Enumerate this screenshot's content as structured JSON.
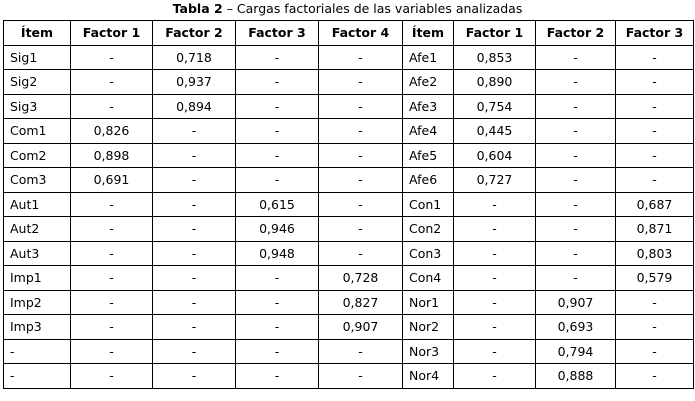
{
  "caption": {
    "label": "Tabla 2",
    "text": "– Cargas factoriales de las variables analizadas"
  },
  "table": {
    "header": [
      "Ítem",
      "Factor 1",
      "Factor 2",
      "Factor 3",
      "Factor 4",
      "Ítem",
      "Factor 1",
      "Factor 2",
      "Factor 3"
    ],
    "rows": [
      [
        "Sig1",
        "-",
        "0,718",
        "-",
        "-",
        "Afe1",
        "0,853",
        "-",
        "-"
      ],
      [
        "Sig2",
        "-",
        "0,937",
        "-",
        "-",
        "Afe2",
        "0,890",
        "-",
        "-"
      ],
      [
        "Sig3",
        "-",
        "0,894",
        "-",
        "-",
        "Afe3",
        "0,754",
        "-",
        "-"
      ],
      [
        "Com1",
        "0,826",
        "-",
        "-",
        "-",
        "Afe4",
        "0,445",
        "-",
        "-"
      ],
      [
        "Com2",
        "0,898",
        "-",
        "-",
        "-",
        "Afe5",
        "0,604",
        "-",
        "-"
      ],
      [
        "Com3",
        "0,691",
        "-",
        "-",
        "-",
        "Afe6",
        "0,727",
        "-",
        "-"
      ],
      [
        "Aut1",
        "-",
        "-",
        "0,615",
        "-",
        "Con1",
        "-",
        "-",
        "0,687"
      ],
      [
        "Aut2",
        "-",
        "-",
        "0,946",
        "-",
        "Con2",
        "-",
        "-",
        "0,871"
      ],
      [
        "Aut3",
        "-",
        "-",
        "0,948",
        "-",
        "Con3",
        "-",
        "-",
        "0,803"
      ],
      [
        "Imp1",
        "-",
        "-",
        "-",
        "0,728",
        "Con4",
        "-",
        "-",
        "0,579"
      ],
      [
        "Imp2",
        "-",
        "-",
        "-",
        "0,827",
        "Nor1",
        "-",
        "0,907",
        "-"
      ],
      [
        "Imp3",
        "-",
        "-",
        "-",
        "0,907",
        "Nor2",
        "-",
        "0,693",
        "-"
      ],
      [
        "-",
        "-",
        "-",
        "-",
        "-",
        "Nor3",
        "-",
        "0,794",
        "-"
      ],
      [
        "-",
        "-",
        "-",
        "-",
        "-",
        "Nor4",
        "-",
        "0,888",
        "-"
      ]
    ]
  }
}
